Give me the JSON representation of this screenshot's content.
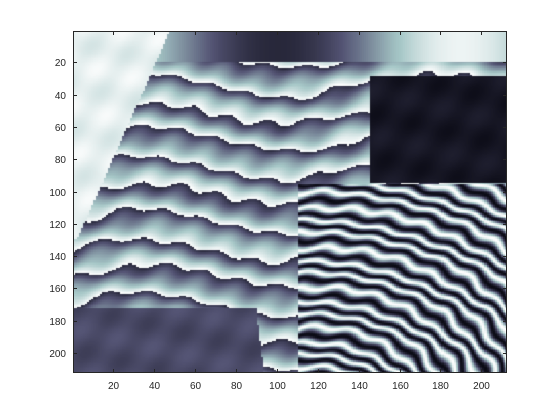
{
  "chart_data": {
    "type": "heatmap",
    "title": "",
    "xlabel": "",
    "ylabel": "",
    "xlim": [
      0.5,
      212.5
    ],
    "ylim": [
      0.5,
      212.5
    ],
    "y_reversed": true,
    "grid": false,
    "colormap": "bone",
    "image_size": [
      212,
      212
    ],
    "xticks": [
      20,
      40,
      60,
      80,
      100,
      120,
      140,
      160,
      180,
      200
    ],
    "xtick_labels": [
      "20",
      "40",
      "60",
      "80",
      "100",
      "120",
      "140",
      "160",
      "180",
      "200"
    ],
    "yticks": [
      20,
      40,
      60,
      80,
      100,
      120,
      140,
      160,
      180,
      200
    ],
    "ytick_labels": [
      "20",
      "40",
      "60",
      "80",
      "100",
      "120",
      "140",
      "160",
      "180",
      "200"
    ],
    "colors": {
      "axes": "#262626",
      "background": "#ffffff",
      "cmap_dark": "#0a0a14",
      "cmap_mid": "#5f7587",
      "cmap_light": "#ffffff"
    }
  }
}
